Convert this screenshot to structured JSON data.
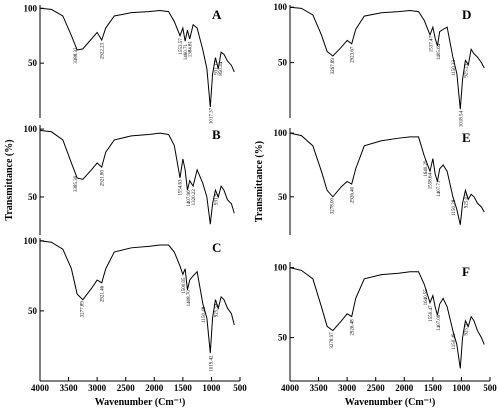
{
  "chart_data": [
    {
      "type": "line",
      "label": "A",
      "color": "#000000",
      "x": [
        4000,
        3800,
        3600,
        3450,
        3350,
        3250,
        3100,
        3000,
        2920,
        2850,
        2700,
        2400,
        2100,
        1900,
        1750,
        1650,
        1550,
        1500,
        1460,
        1420,
        1380,
        1320,
        1250,
        1150,
        1080,
        1020,
        980,
        930,
        880,
        830,
        780,
        720,
        650,
        600
      ],
      "values": [
        100,
        99,
        93,
        75,
        62,
        63,
        72,
        78,
        71,
        82,
        93,
        96,
        97,
        98,
        97,
        88,
        75,
        82,
        70,
        80,
        72,
        85,
        82,
        62,
        45,
        10,
        40,
        55,
        45,
        60,
        58,
        52,
        48,
        42
      ],
      "xlim": [
        4000,
        500
      ],
      "ylim": [
        0,
        103
      ],
      "yticks": [
        50,
        100
      ],
      "peaks": [
        {
          "value": 3388.32,
          "label": "3388.32"
        },
        {
          "value": 2922.23,
          "label": "2922.23"
        },
        {
          "value": 1553.57,
          "label": "1553.57"
        },
        {
          "value": 1460.71,
          "label": "1460.71"
        },
        {
          "value": 1384.81,
          "label": "1384.81"
        },
        {
          "value": 1017.37,
          "label": "1017.37"
        },
        {
          "value": 931.17,
          "label": "931.17"
        },
        {
          "value": 850.34,
          "label": "850.34"
        }
      ]
    },
    {
      "type": "line",
      "label": "B",
      "color": "#000000",
      "x": [
        4000,
        3800,
        3600,
        3450,
        3350,
        3250,
        3100,
        3000,
        2920,
        2850,
        2700,
        2400,
        2100,
        1900,
        1750,
        1650,
        1550,
        1500,
        1460,
        1420,
        1380,
        1320,
        1250,
        1150,
        1080,
        1020,
        980,
        930,
        880,
        830,
        780,
        720,
        650,
        600
      ],
      "values": [
        99,
        98,
        92,
        75,
        64,
        63,
        70,
        75,
        72,
        83,
        92,
        95,
        96,
        97,
        96,
        88,
        64,
        78,
        70,
        55,
        62,
        58,
        70,
        60,
        50,
        30,
        45,
        55,
        50,
        58,
        55,
        48,
        45,
        38
      ],
      "xlim": [
        4000,
        500
      ],
      "ylim": [
        22,
        103
      ],
      "yticks": [
        50,
        100
      ],
      "ylabel": "Transmittance (%)",
      "peaks": [
        {
          "value": 3385.39,
          "label": "3385.39"
        },
        {
          "value": 2921.8,
          "label": "2921.80"
        },
        {
          "value": 1554.63,
          "label": "1554.63"
        },
        {
          "value": 1407.96,
          "label": "1407.96"
        },
        {
          "value": 1320.22,
          "label": "1320.22"
        },
        {
          "value": 931.9,
          "label": "931.9"
        }
      ]
    },
    {
      "type": "line",
      "label": "C",
      "color": "#000000",
      "x": [
        4000,
        3800,
        3600,
        3450,
        3350,
        3250,
        3100,
        3000,
        2920,
        2850,
        2700,
        2400,
        2100,
        1900,
        1750,
        1650,
        1550,
        1500,
        1460,
        1420,
        1380,
        1320,
        1250,
        1150,
        1080,
        1020,
        980,
        930,
        880,
        830,
        780,
        720,
        650,
        600
      ],
      "values": [
        100,
        99,
        94,
        80,
        62,
        58,
        66,
        72,
        70,
        80,
        92,
        95,
        96,
        97,
        97,
        92,
        82,
        76,
        80,
        65,
        72,
        75,
        78,
        55,
        45,
        20,
        45,
        58,
        52,
        60,
        58,
        52,
        48,
        40
      ],
      "xlim": [
        4000,
        500
      ],
      "ylim": [
        0,
        102
      ],
      "yticks": [
        50,
        100
      ],
      "xticks": [
        4000,
        3500,
        3000,
        2500,
        2000,
        1500,
        1000,
        500
      ],
      "xlabel": "Wavenumber (Cm⁻¹)",
      "peaks": [
        {
          "value": 3277.89,
          "label": "3277.89"
        },
        {
          "value": 2921.46,
          "label": "2921.46"
        },
        {
          "value": 1500.05,
          "label": "1500.05"
        },
        {
          "value": 1408.7,
          "label": "1408.70"
        },
        {
          "value": 1150.48,
          "label": "1150.48"
        },
        {
          "value": 1019.42,
          "label": "1019.42"
        },
        {
          "value": 925.54,
          "label": "925.54"
        }
      ]
    },
    {
      "type": "line",
      "label": "D",
      "color": "#000000",
      "x": [
        4000,
        3800,
        3600,
        3450,
        3350,
        3250,
        3100,
        3000,
        2920,
        2850,
        2700,
        2400,
        2100,
        1900,
        1750,
        1650,
        1550,
        1500,
        1460,
        1420,
        1380,
        1320,
        1250,
        1150,
        1080,
        1020,
        980,
        930,
        880,
        830,
        780,
        720,
        650,
        600
      ],
      "values": [
        100,
        99,
        93,
        75,
        60,
        56,
        64,
        70,
        67,
        80,
        92,
        95,
        96,
        97,
        96,
        88,
        75,
        82,
        72,
        65,
        78,
        80,
        82,
        55,
        40,
        8,
        35,
        52,
        48,
        62,
        58,
        55,
        50,
        45
      ],
      "xlim": [
        4000,
        500
      ],
      "ylim": [
        0,
        102
      ],
      "yticks": [
        50,
        100
      ],
      "peaks": [
        {
          "value": 3267.89,
          "label": "3267.89"
        },
        {
          "value": 2923.67,
          "label": "2923.67"
        },
        {
          "value": 1537.47,
          "label": "1537.47"
        },
        {
          "value": 1405.64,
          "label": "1405.64"
        },
        {
          "value": 1150.33,
          "label": "1150.33"
        },
        {
          "value": 1018.54,
          "label": "1018.54"
        },
        {
          "value": 925.23,
          "label": "925.23"
        }
      ]
    },
    {
      "type": "line",
      "label": "E",
      "color": "#000000",
      "x": [
        4000,
        3800,
        3600,
        3450,
        3350,
        3250,
        3100,
        3000,
        2920,
        2850,
        2700,
        2400,
        2100,
        1900,
        1750,
        1650,
        1550,
        1500,
        1460,
        1420,
        1380,
        1320,
        1250,
        1150,
        1080,
        1020,
        980,
        930,
        880,
        830,
        780,
        720,
        650,
        600
      ],
      "values": [
        100,
        98,
        90,
        70,
        55,
        50,
        58,
        62,
        60,
        72,
        90,
        94,
        96,
        97,
        97,
        82,
        70,
        80,
        68,
        62,
        72,
        75,
        70,
        50,
        40,
        28,
        45,
        55,
        48,
        52,
        50,
        45,
        42,
        38
      ],
      "xlim": [
        4000,
        500
      ],
      "ylim": [
        20,
        104
      ],
      "yticks": [
        50,
        100
      ],
      "ylabel": "Transmittance (%)",
      "peaks": [
        {
          "value": 3278.0,
          "label": "3278.00"
        },
        {
          "value": 2926.4,
          "label": "2926.40"
        },
        {
          "value": 1640.29,
          "label": "1640.29"
        },
        {
          "value": 1558.64,
          "label": "1558.64"
        },
        {
          "value": 1407.71,
          "label": "1407.71"
        },
        {
          "value": 1150.28,
          "label": "1150.28"
        },
        {
          "value": 925.02,
          "label": "925.02"
        }
      ]
    },
    {
      "type": "line",
      "label": "F",
      "color": "#000000",
      "x": [
        4000,
        3800,
        3600,
        3450,
        3350,
        3250,
        3100,
        3000,
        2920,
        2850,
        2700,
        2400,
        2100,
        1900,
        1750,
        1650,
        1550,
        1500,
        1460,
        1420,
        1380,
        1320,
        1250,
        1150,
        1080,
        1020,
        980,
        930,
        880,
        830,
        780,
        720,
        650,
        600
      ],
      "values": [
        100,
        98,
        92,
        72,
        58,
        55,
        62,
        67,
        65,
        78,
        92,
        95,
        96,
        97,
        97,
        88,
        75,
        80,
        72,
        66,
        74,
        78,
        72,
        55,
        45,
        28,
        50,
        62,
        58,
        65,
        62,
        55,
        50,
        45
      ],
      "xlim": [
        4000,
        500
      ],
      "ylim": [
        19,
        104
      ],
      "yticks": [
        50,
        100
      ],
      "xticks": [
        4000,
        3500,
        3000,
        2500,
        2000,
        1500,
        1000,
        500
      ],
      "xlabel": "Wavenumber (Cm⁻¹)",
      "peaks": [
        {
          "value": 3278.97,
          "label": "3278.97"
        },
        {
          "value": 2926.48,
          "label": "2926.48"
        },
        {
          "value": 1640.55,
          "label": "1640.55"
        },
        {
          "value": 1550.47,
          "label": "1550.47"
        },
        {
          "value": 1407.08,
          "label": "1407.08"
        },
        {
          "value": 1150.49,
          "label": "1150.49"
        },
        {
          "value": 925.9,
          "label": "925.9"
        }
      ]
    }
  ]
}
